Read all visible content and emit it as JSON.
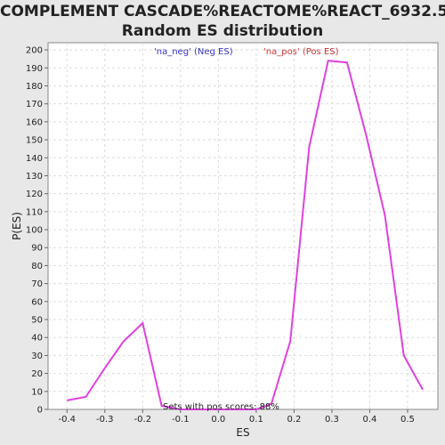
{
  "chart_data": {
    "type": "line",
    "title_line1": "COMPLEMENT CASCADE%REACTOME%REACT_6932.5:",
    "title_line2": "Random ES distribution",
    "xlabel": "ES",
    "ylabel": "P(ES)",
    "xlim": [
      -0.45,
      0.58
    ],
    "ylim": [
      0,
      204
    ],
    "x_ticks": [
      "-0.4",
      "-0.3",
      "-0.2",
      "-0.1",
      "0.0",
      "0.1",
      "0.2",
      "0.3",
      "0.4",
      "0.5"
    ],
    "x_tick_values": [
      -0.4,
      -0.3,
      -0.2,
      -0.1,
      0.0,
      0.1,
      0.2,
      0.3,
      0.4,
      0.5
    ],
    "y_ticks": [
      "0",
      "10",
      "20",
      "30",
      "40",
      "50",
      "60",
      "70",
      "80",
      "90",
      "100",
      "110",
      "120",
      "130",
      "140",
      "150",
      "160",
      "170",
      "180",
      "190",
      "200"
    ],
    "y_tick_values": [
      0,
      10,
      20,
      30,
      40,
      50,
      60,
      70,
      80,
      90,
      100,
      110,
      120,
      130,
      140,
      150,
      160,
      170,
      180,
      190,
      200
    ],
    "grid": true,
    "legend": [
      {
        "label": "'na_neg' (Neg ES)",
        "color": "#3333cc"
      },
      {
        "label": "'na_pos' (Pos ES)",
        "color": "#cc3333"
      }
    ],
    "annotation": "Sets with pos scores: 88%",
    "series": [
      {
        "color": "#e040e0",
        "x": [
          -0.4,
          -0.35,
          -0.3,
          -0.25,
          -0.2,
          -0.15,
          -0.1,
          -0.05,
          0.0,
          0.05,
          0.1,
          0.14,
          0.19,
          0.24,
          0.29,
          0.34,
          0.39,
          0.44,
          0.49,
          0.54
        ],
        "y": [
          5,
          7,
          23,
          38,
          48,
          2,
          0,
          0,
          0,
          0,
          0,
          3,
          38,
          146,
          194,
          193,
          153,
          108,
          30,
          11
        ]
      }
    ]
  }
}
